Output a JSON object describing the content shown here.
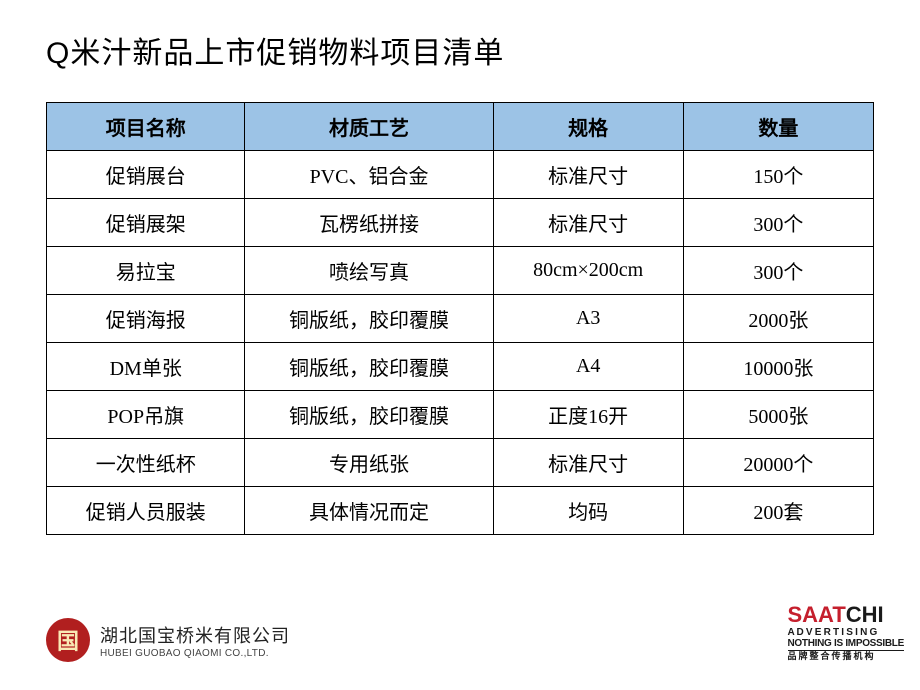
{
  "title": "Q米汁新品上市促销物料项目清单",
  "table": {
    "header_bg": "#9cc3e6",
    "border_color": "#000000",
    "columns": [
      "项目名称",
      "材质工艺",
      "规格",
      "数量"
    ],
    "rows": [
      [
        "促销展台",
        "PVC、铝合金",
        "标准尺寸",
        "150个"
      ],
      [
        "促销展架",
        "瓦楞纸拼接",
        "标准尺寸",
        "300个"
      ],
      [
        "易拉宝",
        "喷绘写真",
        "80cm×200cm",
        "300个"
      ],
      [
        "促销海报",
        "铜版纸，胶印覆膜",
        "A3",
        "2000张"
      ],
      [
        "DM单张",
        "铜版纸，胶印覆膜",
        "A4",
        "10000张"
      ],
      [
        "POP吊旗",
        "铜版纸，胶印覆膜",
        "正度16开",
        "5000张"
      ],
      [
        "一次性纸杯",
        "专用纸张",
        "标准尺寸",
        "20000个"
      ],
      [
        "促销人员服装",
        "具体情况而定",
        "均码",
        "200套"
      ]
    ]
  },
  "footer": {
    "left": {
      "logo_char": "国",
      "logo_bg": "#b11f1f",
      "logo_color": "#f9e9b5",
      "company_cn": "湖北国宝桥米有限公司",
      "company_en": "HUBEI GUOBAO QIAOMI CO.,LTD."
    },
    "right": {
      "brand_red": "SAAT",
      "brand_black": "CHI",
      "brand_red_color": "#c51f2d",
      "sub1_a": "A D V E R T I S I N G",
      "sub1_b": "NOTHING IS IMPOSSIBLE",
      "sub2": "品牌整合传播机构"
    }
  }
}
